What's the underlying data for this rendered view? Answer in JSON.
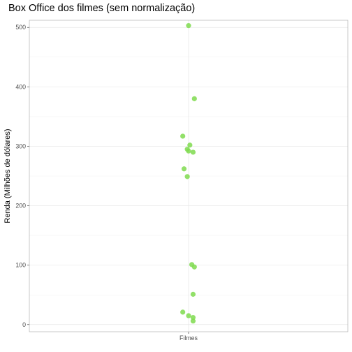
{
  "chart_data": {
    "type": "scatter",
    "title": "Box Office dos filmes (sem normalização)",
    "xlabel": "",
    "ylabel": "Renda (Milhões de dólares)",
    "categories": [
      "Filmes"
    ],
    "ylim": [
      -12,
      512
    ],
    "y_ticks": [
      0,
      100,
      200,
      300,
      400,
      500
    ],
    "y_tick_labels": [
      "0",
      "100",
      "200",
      "300",
      "400",
      "500"
    ],
    "grid": true,
    "point_color": "#7fdb4f",
    "points": [
      {
        "x": 0.0,
        "y": 503
      },
      {
        "x": 0.09,
        "y": 380
      },
      {
        "x": -0.09,
        "y": 317
      },
      {
        "x": 0.02,
        "y": 302
      },
      {
        "x": -0.02,
        "y": 295
      },
      {
        "x": 0.0,
        "y": 292
      },
      {
        "x": 0.07,
        "y": 290
      },
      {
        "x": -0.07,
        "y": 262
      },
      {
        "x": -0.02,
        "y": 249
      },
      {
        "x": 0.05,
        "y": 101
      },
      {
        "x": 0.09,
        "y": 97
      },
      {
        "x": 0.07,
        "y": 51
      },
      {
        "x": -0.09,
        "y": 21
      },
      {
        "x": 0.0,
        "y": 15
      },
      {
        "x": 0.07,
        "y": 12
      },
      {
        "x": 0.07,
        "y": 6
      }
    ]
  }
}
